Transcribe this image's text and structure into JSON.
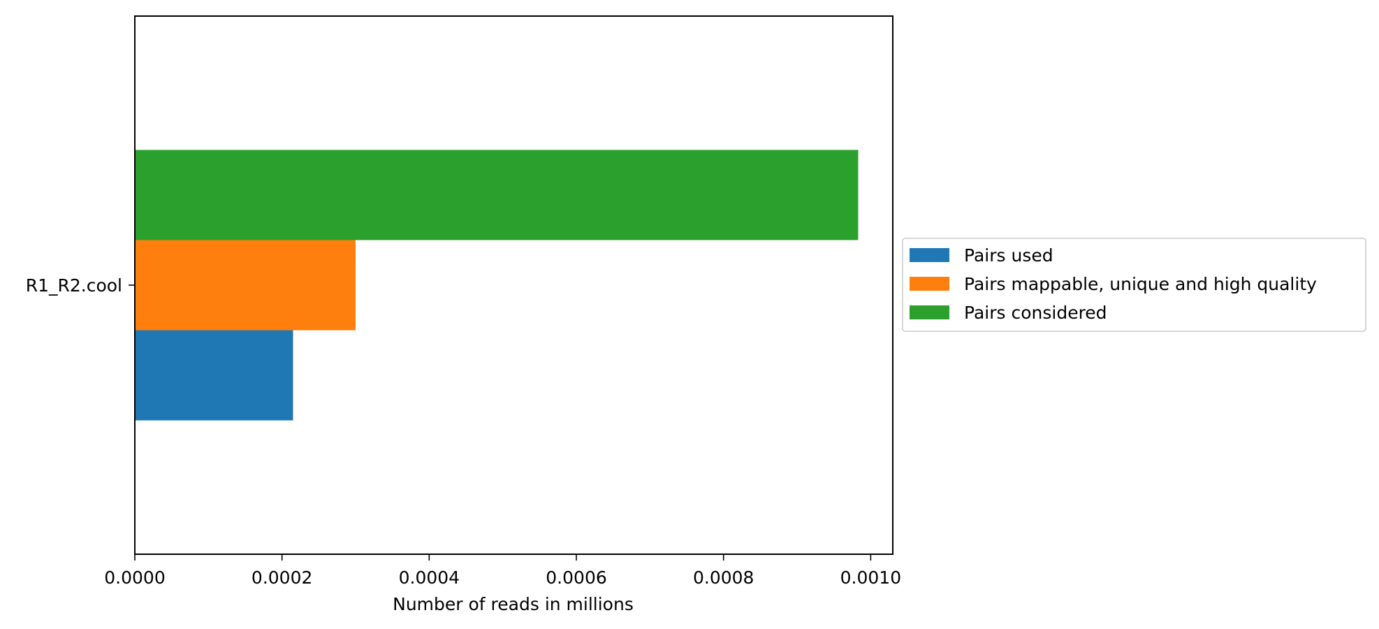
{
  "chart_data": {
    "type": "bar",
    "orientation": "horizontal",
    "categories": [
      "R1_R2.cool"
    ],
    "series": [
      {
        "name": "Pairs used",
        "color": "#1f77b4",
        "values": [
          0.000215
        ]
      },
      {
        "name": "Pairs mappable, unique and high quality",
        "color": "#ff7f0e",
        "values": [
          0.0003
        ]
      },
      {
        "name": "Pairs considered",
        "color": "#2ca02c",
        "values": [
          0.000983
        ]
      }
    ],
    "xlabel": "Number of reads in millions",
    "ylabel": "",
    "title": "",
    "xlim": [
      0,
      0.00103
    ],
    "xticks": [
      0,
      0.0002,
      0.0004,
      0.0006,
      0.0008,
      0.001
    ],
    "xtick_labels": [
      "0.0000",
      "0.0002",
      "0.0004",
      "0.0006",
      "0.0008",
      "0.0010"
    ],
    "grid": false,
    "legend_position": "center-left outside right"
  }
}
